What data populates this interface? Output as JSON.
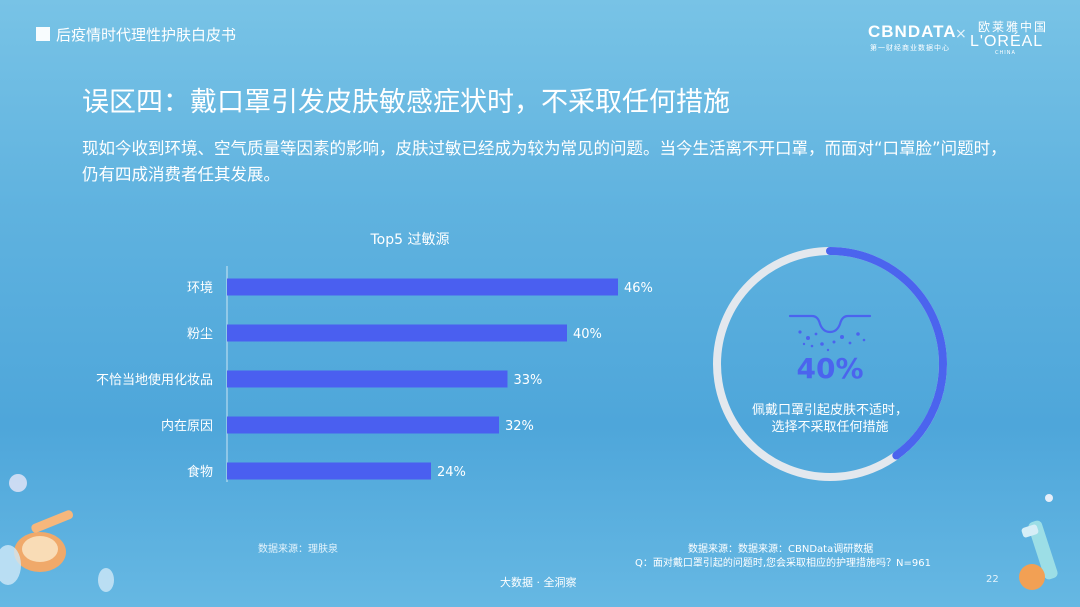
{
  "header": {
    "title": "后疫情时代理性护肤白皮书",
    "logo_cbn": "CBNDATA",
    "logo_cbn_sub": "第一财经商业数据中心",
    "logo_separator": "×",
    "logo_loreal_cn": "欧莱雅中国",
    "logo_loreal": "L'ORÉAL",
    "logo_loreal_sub": "CHINA"
  },
  "main": {
    "title": "误区四：戴口罩引发皮肤敏感症状时，不采取任何措施",
    "description": "现如今收到环境、空气质量等因素的影响，皮肤过敏已经成为较为常见的问题。当今生活离不开口罩，而面对“口罩脸”问题时，仍有四成消费者任其发展。"
  },
  "chart_data": [
    {
      "type": "bar",
      "orientation": "horizontal",
      "title": "Top5 过敏源",
      "categories": [
        "环境",
        "粉尘",
        "不恰当地使用化妆品",
        "内在原因",
        "食物"
      ],
      "values": [
        46,
        40,
        33,
        32,
        24
      ],
      "value_labels": [
        "46%",
        "40%",
        "33%",
        "32%",
        "24%"
      ],
      "unit": "%",
      "xlim": [
        0,
        55
      ],
      "bar_color": "#4a5ff0",
      "grid": false,
      "source": "数据来源：理肤泉"
    },
    {
      "type": "pie",
      "style": "ring",
      "values": [
        40,
        60
      ],
      "value_label": "40%",
      "caption": "佩戴口罩引起皮肤不适时，选择不采取任何措施",
      "caption_line1": "佩戴口罩引起皮肤不适时，",
      "caption_line2": "选择不采取任何措施",
      "highlight_color": "#4b64ee",
      "track_color": "#e3e8ee"
    }
  ],
  "footer": {
    "source_right_1": "数据来源：数据来源：CBNData调研数据",
    "source_right_2": "Q：面对戴口罩引起的问题时,您会采取相应的护理措施吗？N=961",
    "center": "大数据 · 全洞察",
    "page_number": "22"
  }
}
